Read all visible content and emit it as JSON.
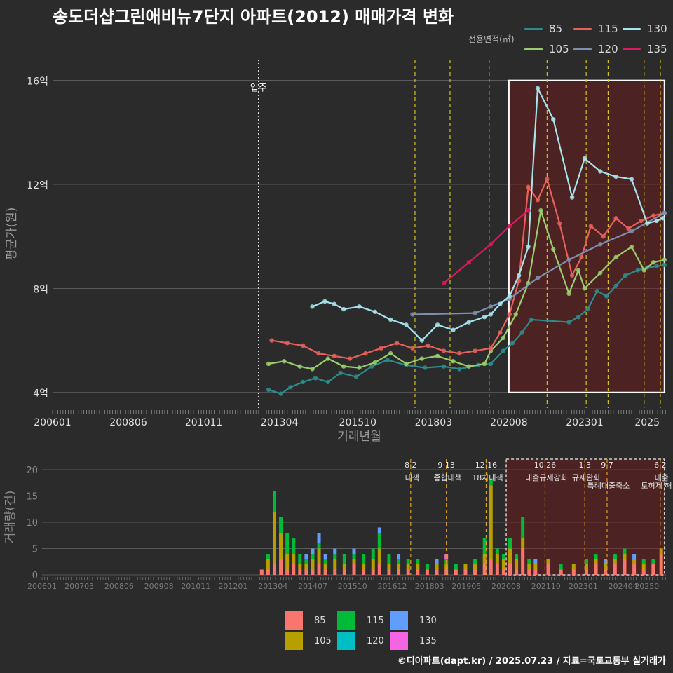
{
  "title": "송도더샵그린애비뉴7단지 아파트(2012) 매매가격 변화",
  "credit": "©디아파트(dapt.kr) / 2025.07.23 / 자료=국토교통부 실거래가",
  "chart_data": [
    {
      "type": "line",
      "title": "송도더샵그린애비뉴7단지 아파트(2012) 매매가격 변화",
      "xlabel": "거래년월",
      "ylabel": "평균가(원)",
      "xlim": [
        2006.0,
        2025.6
      ],
      "ylim": [
        3.4,
        16.8
      ],
      "x_ticks": [
        2006.0,
        2008.42,
        2010.83,
        2013.25,
        2015.75,
        2018.17,
        2020.58,
        2023.0,
        2025.0
      ],
      "x_tick_labels": [
        "200601",
        "200806",
        "201011",
        "201304",
        "201510",
        "201803",
        "202008",
        "202301",
        "2025"
      ],
      "y_ticks": [
        4,
        8,
        12,
        16
      ],
      "y_tick_labels": [
        "4억",
        "8억",
        "12억",
        "16억"
      ],
      "legend_title": "전용면적(㎡)",
      "move_in": {
        "x": 2012.58,
        "label": "입주"
      },
      "policy_lines": [
        2017.58,
        2018.7,
        2019.95,
        2021.8,
        2023.05,
        2023.75,
        2024.9,
        2025.42
      ],
      "highlight_range": [
        2020.58,
        2025.55
      ],
      "series": [
        {
          "name": "85",
          "color": "#2e8b8b",
          "x": [
            2012.9,
            2013.3,
            2013.6,
            2014.0,
            2014.4,
            2014.8,
            2015.2,
            2015.7,
            2016.2,
            2016.7,
            2017.3,
            2017.9,
            2018.5,
            2019.0,
            2019.6,
            2020.0,
            2020.4,
            2020.7,
            2021.0,
            2021.3,
            2022.5,
            2022.8,
            2023.1,
            2023.4,
            2023.7,
            2024.0,
            2024.3,
            2024.7,
            2025.0,
            2025.3,
            2025.55
          ],
          "y": [
            4.1,
            3.95,
            4.2,
            4.4,
            4.55,
            4.4,
            4.75,
            4.6,
            5.0,
            5.25,
            5.05,
            4.95,
            5.0,
            4.9,
            5.05,
            5.1,
            5.6,
            5.9,
            6.3,
            6.8,
            6.7,
            6.9,
            7.2,
            7.9,
            7.7,
            8.1,
            8.5,
            8.7,
            8.8,
            8.85,
            8.9
          ]
        },
        {
          "name": "105",
          "color": "#9acd6e",
          "x": [
            2012.9,
            2013.4,
            2013.9,
            2014.3,
            2014.8,
            2015.3,
            2015.8,
            2016.3,
            2016.8,
            2017.3,
            2017.8,
            2018.3,
            2018.8,
            2019.3,
            2019.8,
            2020.0,
            2020.4,
            2020.8,
            2021.2,
            2021.6,
            2022.0,
            2022.5,
            2022.8,
            2023.0,
            2023.5,
            2024.0,
            2024.5,
            2024.9,
            2025.2,
            2025.55
          ],
          "y": [
            5.1,
            5.2,
            5.0,
            4.9,
            5.3,
            5.0,
            4.95,
            5.15,
            5.5,
            5.1,
            5.3,
            5.4,
            5.2,
            5.0,
            5.1,
            5.6,
            6.1,
            7.0,
            8.2,
            11.0,
            9.5,
            7.8,
            8.7,
            8.0,
            8.6,
            9.2,
            9.6,
            8.7,
            9.0,
            9.1
          ]
        },
        {
          "name": "115",
          "color": "#e8605b",
          "x": [
            2013.0,
            2013.5,
            2014.0,
            2014.5,
            2015.0,
            2015.5,
            2016.0,
            2016.5,
            2017.0,
            2017.5,
            2018.0,
            2018.5,
            2019.0,
            2019.5,
            2020.0,
            2020.3,
            2020.6,
            2020.9,
            2021.2,
            2021.5,
            2021.8,
            2022.2,
            2022.6,
            2022.9,
            2023.2,
            2023.6,
            2024.0,
            2024.4,
            2024.8,
            2025.2,
            2025.55
          ],
          "y": [
            6.0,
            5.9,
            5.8,
            5.5,
            5.4,
            5.3,
            5.5,
            5.7,
            5.9,
            5.7,
            5.8,
            5.6,
            5.5,
            5.6,
            5.7,
            6.3,
            7.0,
            8.3,
            11.9,
            11.4,
            12.2,
            10.5,
            8.5,
            9.2,
            10.4,
            10.0,
            10.7,
            10.3,
            10.6,
            10.8,
            10.9
          ]
        },
        {
          "name": "120",
          "color": "#7f8fb0",
          "x": [
            2017.5,
            2019.5,
            2020.0,
            2020.6,
            2021.5,
            2022.5,
            2023.5,
            2024.5,
            2025.55
          ],
          "y": [
            7.0,
            7.05,
            7.3,
            7.6,
            8.4,
            9.1,
            9.7,
            10.2,
            10.9
          ]
        },
        {
          "name": "130",
          "color": "#a6e4ec",
          "x": [
            2014.3,
            2014.7,
            2015.0,
            2015.3,
            2015.8,
            2016.3,
            2016.8,
            2017.3,
            2017.8,
            2018.3,
            2018.8,
            2019.3,
            2019.8,
            2020.0,
            2020.3,
            2020.6,
            2020.9,
            2021.2,
            2021.5,
            2022.0,
            2022.6,
            2023.0,
            2023.5,
            2024.0,
            2024.5,
            2025.0,
            2025.3,
            2025.5
          ],
          "y": [
            7.3,
            7.5,
            7.4,
            7.2,
            7.3,
            7.1,
            6.8,
            6.6,
            6.0,
            6.6,
            6.4,
            6.7,
            6.9,
            7.0,
            7.4,
            7.7,
            8.5,
            9.6,
            15.7,
            14.5,
            11.5,
            13.0,
            12.5,
            12.3,
            12.2,
            10.5,
            10.6,
            10.7
          ]
        },
        {
          "name": "135",
          "color": "#d81b60",
          "x": [
            2018.5,
            2019.3,
            2020.0,
            2020.6,
            2021.2
          ],
          "y": [
            8.2,
            9.0,
            9.7,
            10.4,
            11.0
          ]
        }
      ]
    },
    {
      "type": "bar",
      "title": "거래량",
      "xlabel": "",
      "ylabel": "거래량(건)",
      "stacked": true,
      "xlim": [
        2006.0,
        2025.6
      ],
      "ylim": [
        0,
        22
      ],
      "y_ticks": [
        0,
        5,
        10,
        15,
        20
      ],
      "y_tick_labels": [
        "0",
        "5",
        "10",
        "15",
        "20"
      ],
      "x_ticks": [
        2006.0,
        2007.17,
        2008.42,
        2009.67,
        2010.83,
        2012.0,
        2013.25,
        2014.5,
        2015.75,
        2017.0,
        2018.17,
        2019.33,
        2020.58,
        2021.83,
        2023.0,
        2024.25,
        2025.0
      ],
      "x_tick_labels": [
        "200601",
        "200703",
        "200806",
        "200908",
        "201011",
        "201201",
        "201304",
        "201407",
        "201510",
        "201612",
        "201803",
        "201905",
        "202008",
        "202110",
        "202301",
        "202404",
        "20250"
      ],
      "highlight_range": [
        2020.58,
        2025.55
      ],
      "series_colors": {
        "85": "#f8766d",
        "105": "#b79f00",
        "115": "#00ba38",
        "120": "#00bfc4",
        "130": "#619cff",
        "135": "#f564e3"
      },
      "bars": [
        {
          "x": 2012.9,
          "85": 1,
          "105": 0,
          "115": 0,
          "120": 0,
          "130": 0,
          "135": 0
        },
        {
          "x": 2013.1,
          "85": 1,
          "105": 2,
          "115": 1,
          "120": 0,
          "130": 0,
          "135": 0
        },
        {
          "x": 2013.3,
          "85": 2,
          "105": 10,
          "115": 4,
          "120": 0,
          "130": 0,
          "135": 0
        },
        {
          "x": 2013.5,
          "85": 3,
          "105": 5,
          "115": 3,
          "120": 0,
          "130": 0,
          "135": 0
        },
        {
          "x": 2013.7,
          "85": 1,
          "105": 3,
          "115": 4,
          "120": 0,
          "130": 0,
          "135": 0
        },
        {
          "x": 2013.9,
          "85": 2,
          "105": 2,
          "115": 3,
          "120": 0,
          "130": 0,
          "135": 0
        },
        {
          "x": 2014.1,
          "85": 1,
          "105": 1,
          "115": 2,
          "120": 0,
          "130": 0,
          "135": 0
        },
        {
          "x": 2014.3,
          "85": 1,
          "105": 1,
          "115": 1,
          "120": 0,
          "130": 1,
          "135": 0
        },
        {
          "x": 2014.5,
          "85": 1,
          "105": 2,
          "115": 1,
          "120": 0,
          "130": 1,
          "135": 0
        },
        {
          "x": 2014.7,
          "85": 2,
          "105": 3,
          "115": 1,
          "120": 0,
          "130": 2,
          "135": 0
        },
        {
          "x": 2014.9,
          "85": 1,
          "105": 1,
          "115": 1,
          "120": 0,
          "130": 1,
          "135": 0
        },
        {
          "x": 2015.2,
          "85": 1,
          "105": 2,
          "115": 1,
          "120": 0,
          "130": 1,
          "135": 0
        },
        {
          "x": 2015.5,
          "85": 1,
          "105": 1,
          "115": 2,
          "120": 0,
          "130": 0,
          "135": 0
        },
        {
          "x": 2015.8,
          "85": 2,
          "105": 1,
          "115": 1,
          "120": 0,
          "130": 1,
          "135": 0
        },
        {
          "x": 2016.1,
          "85": 1,
          "105": 1,
          "115": 2,
          "120": 0,
          "130": 0,
          "135": 0
        },
        {
          "x": 2016.4,
          "85": 1,
          "105": 2,
          "115": 2,
          "120": 0,
          "130": 0,
          "135": 0
        },
        {
          "x": 2016.6,
          "85": 2,
          "105": 3,
          "115": 3,
          "120": 0,
          "130": 1,
          "135": 0
        },
        {
          "x": 2016.9,
          "85": 1,
          "105": 1,
          "115": 2,
          "120": 0,
          "130": 0,
          "135": 0
        },
        {
          "x": 2017.2,
          "85": 1,
          "105": 1,
          "115": 1,
          "120": 0,
          "130": 1,
          "135": 0
        },
        {
          "x": 2017.5,
          "85": 1,
          "105": 1,
          "115": 1,
          "120": 0,
          "130": 0,
          "135": 0
        },
        {
          "x": 2017.8,
          "85": 1,
          "105": 1,
          "115": 1,
          "120": 0,
          "130": 0,
          "135": 0
        },
        {
          "x": 2018.1,
          "85": 1,
          "105": 0,
          "115": 1,
          "120": 0,
          "130": 0,
          "135": 0
        },
        {
          "x": 2018.4,
          "85": 1,
          "105": 1,
          "115": 0,
          "120": 0,
          "130": 1,
          "135": 0
        },
        {
          "x": 2018.7,
          "85": 1,
          "105": 1,
          "115": 1,
          "120": 0,
          "130": 0,
          "135": 1
        },
        {
          "x": 2019.0,
          "85": 1,
          "105": 0,
          "115": 1,
          "120": 0,
          "130": 0,
          "135": 0
        },
        {
          "x": 2019.3,
          "85": 1,
          "105": 1,
          "115": 0,
          "120": 0,
          "130": 0,
          "135": 0
        },
        {
          "x": 2019.6,
          "85": 1,
          "105": 1,
          "115": 1,
          "120": 0,
          "130": 0,
          "135": 0
        },
        {
          "x": 2019.9,
          "85": 2,
          "105": 2,
          "115": 3,
          "120": 0,
          "130": 0,
          "135": 0
        },
        {
          "x": 2020.1,
          "85": 3,
          "105": 14,
          "115": 1,
          "120": 0,
          "130": 0,
          "135": 0
        },
        {
          "x": 2020.3,
          "85": 2,
          "105": 2,
          "115": 1,
          "120": 0,
          "130": 0,
          "135": 0
        },
        {
          "x": 2020.5,
          "85": 1,
          "105": 2,
          "115": 1,
          "120": 0,
          "130": 0,
          "135": 0
        },
        {
          "x": 2020.7,
          "85": 2,
          "105": 3,
          "115": 2,
          "120": 0,
          "130": 0,
          "135": 0
        },
        {
          "x": 2020.9,
          "85": 1,
          "105": 2,
          "115": 1,
          "120": 0,
          "130": 0,
          "135": 0
        },
        {
          "x": 2021.1,
          "85": 5,
          "105": 2,
          "115": 4,
          "120": 0,
          "130": 0,
          "135": 0
        },
        {
          "x": 2021.3,
          "85": 1,
          "105": 1,
          "115": 1,
          "120": 0,
          "130": 0,
          "135": 0
        },
        {
          "x": 2021.5,
          "85": 1,
          "105": 1,
          "115": 0,
          "120": 0,
          "130": 1,
          "135": 0
        },
        {
          "x": 2021.9,
          "85": 2,
          "105": 1,
          "115": 0,
          "120": 0,
          "130": 0,
          "135": 0
        },
        {
          "x": 2022.3,
          "85": 1,
          "105": 0,
          "115": 1,
          "120": 0,
          "130": 0,
          "135": 0
        },
        {
          "x": 2022.7,
          "85": 1,
          "105": 1,
          "115": 0,
          "120": 0,
          "130": 0,
          "135": 0
        },
        {
          "x": 2023.1,
          "85": 1,
          "105": 1,
          "115": 1,
          "120": 0,
          "130": 0,
          "135": 0
        },
        {
          "x": 2023.4,
          "85": 2,
          "105": 1,
          "115": 1,
          "120": 0,
          "130": 0,
          "135": 0
        },
        {
          "x": 2023.7,
          "85": 1,
          "105": 1,
          "115": 0,
          "120": 0,
          "130": 1,
          "135": 0
        },
        {
          "x": 2024.0,
          "85": 2,
          "105": 1,
          "115": 1,
          "120": 0,
          "130": 0,
          "135": 0
        },
        {
          "x": 2024.3,
          "85": 3,
          "105": 1,
          "115": 1,
          "120": 0,
          "130": 0,
          "135": 0
        },
        {
          "x": 2024.6,
          "85": 2,
          "105": 1,
          "115": 0,
          "120": 0,
          "130": 1,
          "135": 0
        },
        {
          "x": 2024.9,
          "85": 1,
          "105": 1,
          "115": 1,
          "120": 0,
          "130": 0,
          "135": 0
        },
        {
          "x": 2025.2,
          "85": 2,
          "105": 0,
          "115": 1,
          "120": 0,
          "130": 0,
          "135": 0
        },
        {
          "x": 2025.45,
          "85": 4,
          "105": 1,
          "115": 0,
          "120": 0,
          "130": 0,
          "135": 0
        }
      ],
      "policies": [
        {
          "x": 2017.58,
          "date": "8·2",
          "name": "대책"
        },
        {
          "x": 2018.7,
          "date": "9·13",
          "name": "종합대책"
        },
        {
          "x": 2019.95,
          "date": "12·16",
          "name": "18차대책"
        },
        {
          "x": 2021.8,
          "date": "10·26",
          "name": "대출규제강화"
        },
        {
          "x": 2023.05,
          "date": "1·3",
          "name": "규제완화"
        },
        {
          "x": 2023.75,
          "date": "9·7",
          "name": "특례대출축소"
        },
        {
          "x": 2025.42,
          "date": "6·2",
          "name": "대출"
        }
      ],
      "extra_label": "토허제 해"
    }
  ],
  "legend_top": [
    "85",
    "105",
    "115",
    "120",
    "130",
    "135"
  ],
  "legend_bottom": [
    "85",
    "105",
    "115",
    "120",
    "130",
    "135"
  ]
}
